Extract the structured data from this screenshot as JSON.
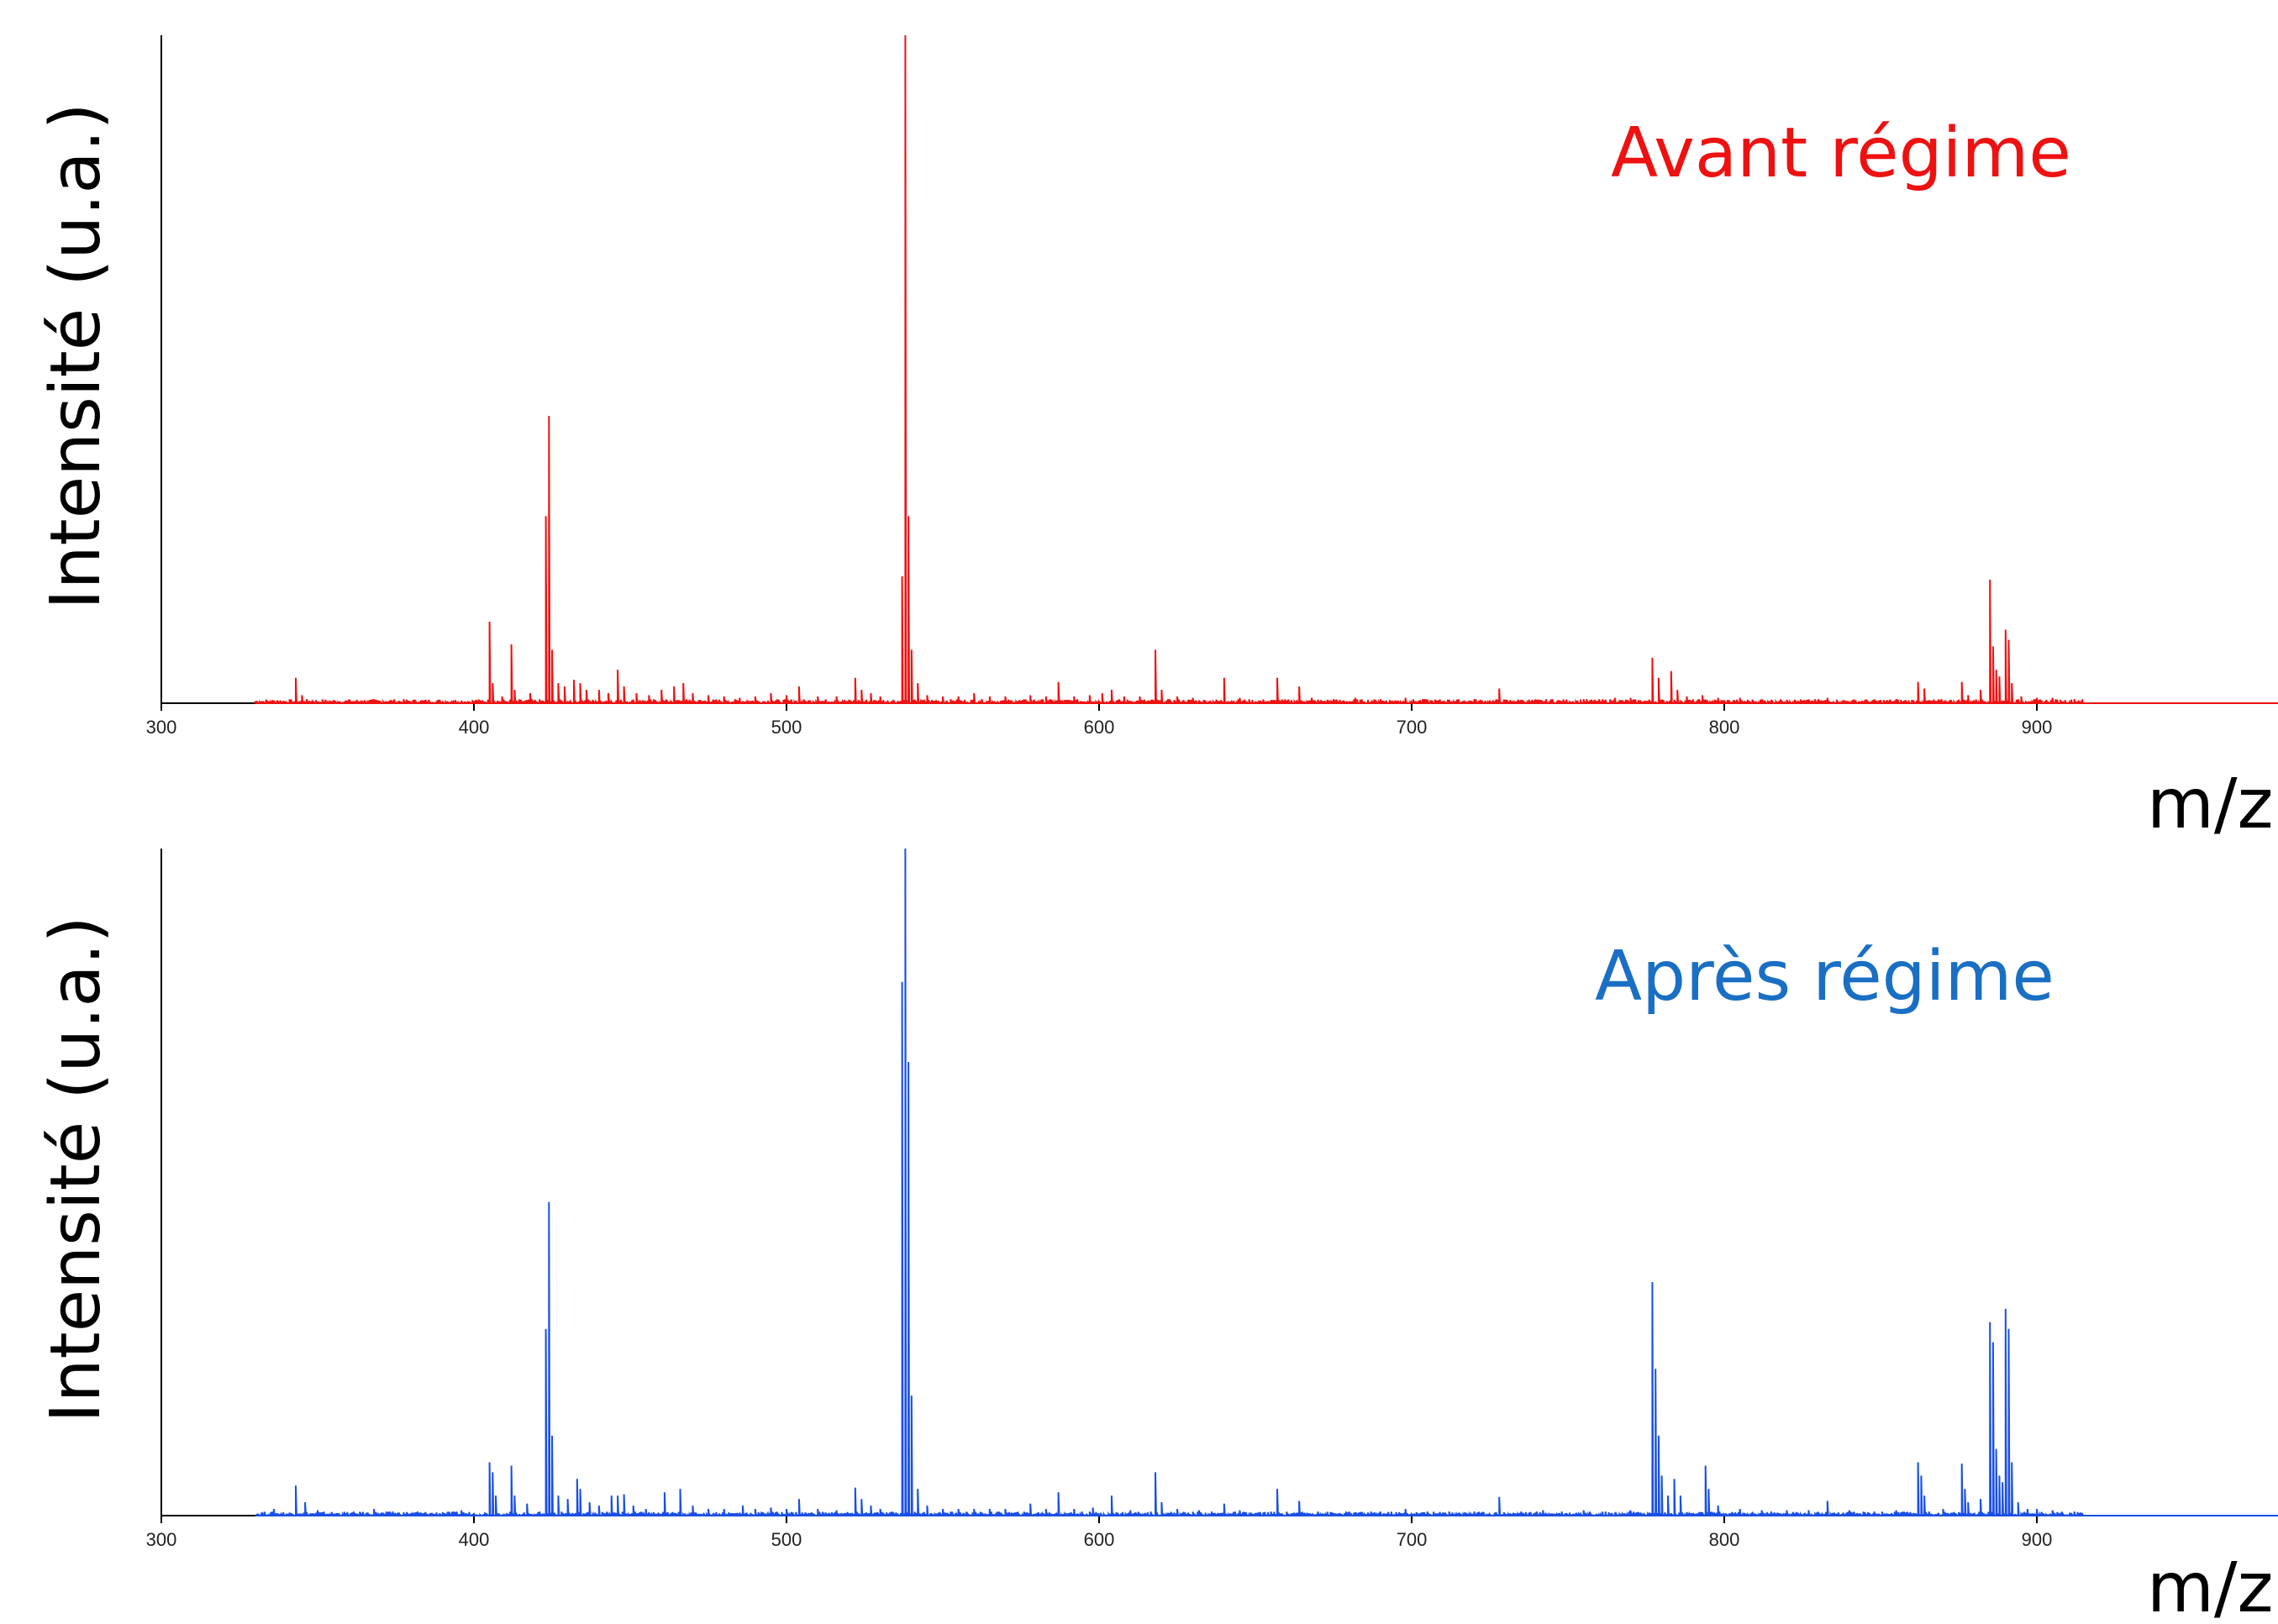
{
  "chart_data": [
    {
      "type": "line",
      "title": "Avant régime",
      "xlabel": "m/z",
      "ylabel": "Intensité (u.a.)",
      "xlim": [
        300,
        1000
      ],
      "ylim": [
        0,
        100
      ],
      "xticks": [
        "300",
        "400",
        "500",
        "600",
        "700",
        "800",
        "900"
      ],
      "grid": false,
      "color": "#ee1111",
      "title_color": "#ee1111",
      "peaks": [
        [
          337,
          0.4
        ],
        [
          343,
          3.8
        ],
        [
          345,
          1.2
        ],
        [
          368,
          0.6
        ],
        [
          378,
          0.3
        ],
        [
          405,
          12.2
        ],
        [
          406,
          3
        ],
        [
          409,
          1
        ],
        [
          412,
          8.8
        ],
        [
          413,
          2
        ],
        [
          418,
          1.5
        ],
        [
          423,
          28
        ],
        [
          424,
          43
        ],
        [
          425,
          8
        ],
        [
          427,
          3
        ],
        [
          429,
          2.5
        ],
        [
          432,
          3.5
        ],
        [
          434,
          3
        ],
        [
          436,
          2
        ],
        [
          440,
          2
        ],
        [
          443,
          1.5
        ],
        [
          446,
          5
        ],
        [
          448,
          2.5
        ],
        [
          452,
          1.5
        ],
        [
          456,
          1.2
        ],
        [
          460,
          2
        ],
        [
          464,
          2.5
        ],
        [
          467,
          3
        ],
        [
          470,
          1.5
        ],
        [
          475,
          1.2
        ],
        [
          480,
          1
        ],
        [
          485,
          0.8
        ],
        [
          490,
          1
        ],
        [
          495,
          1.5
        ],
        [
          500,
          1.2
        ],
        [
          504,
          2.5
        ],
        [
          510,
          1
        ],
        [
          516,
          1
        ],
        [
          522,
          3.8
        ],
        [
          524,
          2
        ],
        [
          527,
          1.5
        ],
        [
          530,
          1
        ],
        [
          537,
          19
        ],
        [
          538,
          100
        ],
        [
          539,
          28
        ],
        [
          540,
          8
        ],
        [
          542,
          3
        ],
        [
          545,
          1.2
        ],
        [
          550,
          1
        ],
        [
          555,
          1
        ],
        [
          560,
          1.5
        ],
        [
          565,
          1
        ],
        [
          570,
          1
        ],
        [
          578,
          1.2
        ],
        [
          583,
          1
        ],
        [
          587,
          3.2
        ],
        [
          592,
          1
        ],
        [
          597,
          1.2
        ],
        [
          601,
          1.5
        ],
        [
          604,
          2
        ],
        [
          608,
          1
        ],
        [
          613,
          1
        ],
        [
          618,
          8
        ],
        [
          620,
          2
        ],
        [
          625,
          1
        ],
        [
          630,
          0.8
        ],
        [
          640,
          3.8
        ],
        [
          645,
          0.8
        ],
        [
          657,
          3.8
        ],
        [
          664,
          2.5
        ],
        [
          668,
          0.8
        ],
        [
          675,
          0.6
        ],
        [
          682,
          0.8
        ],
        [
          690,
          0.6
        ],
        [
          698,
          0.8
        ],
        [
          704,
          0.6
        ],
        [
          712,
          0.5
        ],
        [
          720,
          0.6
        ],
        [
          728,
          2.2
        ],
        [
          735,
          0.5
        ],
        [
          745,
          0.6
        ],
        [
          755,
          0.6
        ],
        [
          765,
          0.8
        ],
        [
          770,
          0.8
        ],
        [
          777,
          6.8
        ],
        [
          779,
          3.8
        ],
        [
          783,
          4.8
        ],
        [
          785,
          2
        ],
        [
          788,
          1
        ],
        [
          793,
          1.2
        ],
        [
          798,
          0.8
        ],
        [
          805,
          0.8
        ],
        [
          812,
          0.6
        ],
        [
          820,
          0.5
        ],
        [
          833,
          0.8
        ],
        [
          845,
          0.5
        ],
        [
          855,
          0.6
        ],
        [
          862,
          3.2
        ],
        [
          864,
          2.2
        ],
        [
          876,
          3.2
        ],
        [
          878,
          1.2
        ],
        [
          882,
          2
        ],
        [
          885,
          18.5
        ],
        [
          886,
          8.5
        ],
        [
          887,
          5
        ],
        [
          888,
          4
        ],
        [
          890,
          11
        ],
        [
          891,
          9.5
        ],
        [
          892,
          3
        ],
        [
          895,
          1
        ],
        [
          900,
          0.8
        ],
        [
          905,
          0.8
        ],
        [
          912,
          0.6
        ]
      ]
    },
    {
      "type": "line",
      "title": "Après régime",
      "xlabel": "m/z",
      "ylabel": "Intensité (u.a.)",
      "xlim": [
        300,
        1000
      ],
      "ylim": [
        0,
        100
      ],
      "xticks": [
        "300",
        "400",
        "500",
        "600",
        "700",
        "800",
        "900"
      ],
      "grid": false,
      "color": "#1a4fe6",
      "title_color": "#1a6fc4",
      "peaks": [
        [
          303,
          0.3
        ],
        [
          336,
          1
        ],
        [
          343,
          4.5
        ],
        [
          346,
          2
        ],
        [
          350,
          0.8
        ],
        [
          368,
          1
        ],
        [
          374,
          0.6
        ],
        [
          382,
          0.6
        ],
        [
          390,
          0.5
        ],
        [
          396,
          0.8
        ],
        [
          405,
          8
        ],
        [
          406,
          6.5
        ],
        [
          407,
          3
        ],
        [
          412,
          7.5
        ],
        [
          413,
          3
        ],
        [
          417,
          1.8
        ],
        [
          423,
          28
        ],
        [
          424,
          47
        ],
        [
          425,
          12
        ],
        [
          427,
          3
        ],
        [
          430,
          2.5
        ],
        [
          433,
          5.5
        ],
        [
          434,
          4
        ],
        [
          437,
          2
        ],
        [
          440,
          1.5
        ],
        [
          444,
          3
        ],
        [
          446,
          3
        ],
        [
          448,
          3.2
        ],
        [
          451,
          1.5
        ],
        [
          455,
          1
        ],
        [
          461,
          3.5
        ],
        [
          466,
          4
        ],
        [
          470,
          1.5
        ],
        [
          475,
          1
        ],
        [
          480,
          1
        ],
        [
          486,
          1.5
        ],
        [
          490,
          1
        ],
        [
          495,
          1.2
        ],
        [
          500,
          1
        ],
        [
          504,
          2.5
        ],
        [
          510,
          1
        ],
        [
          516,
          0.8
        ],
        [
          522,
          4.2
        ],
        [
          524,
          2.5
        ],
        [
          527,
          1.5
        ],
        [
          530,
          1
        ],
        [
          537,
          80
        ],
        [
          538,
          100
        ],
        [
          539,
          68
        ],
        [
          540,
          18
        ],
        [
          542,
          4
        ],
        [
          545,
          1.5
        ],
        [
          550,
          1
        ],
        [
          555,
          1
        ],
        [
          560,
          1
        ],
        [
          565,
          1
        ],
        [
          570,
          1
        ],
        [
          578,
          1.8
        ],
        [
          583,
          1
        ],
        [
          587,
          3.5
        ],
        [
          592,
          1
        ],
        [
          598,
          1.2
        ],
        [
          604,
          3
        ],
        [
          610,
          0.8
        ],
        [
          618,
          6.5
        ],
        [
          620,
          2
        ],
        [
          625,
          1
        ],
        [
          632,
          0.8
        ],
        [
          640,
          1.8
        ],
        [
          645,
          0.8
        ],
        [
          657,
          4
        ],
        [
          664,
          2.2
        ],
        [
          670,
          0.6
        ],
        [
          680,
          0.6
        ],
        [
          690,
          0.6
        ],
        [
          698,
          1
        ],
        [
          705,
          0.6
        ],
        [
          712,
          0.6
        ],
        [
          720,
          0.6
        ],
        [
          728,
          2.8
        ],
        [
          735,
          0.6
        ],
        [
          742,
          0.8
        ],
        [
          748,
          0.6
        ],
        [
          755,
          0.8
        ],
        [
          762,
          0.6
        ],
        [
          770,
          0.8
        ],
        [
          777,
          35
        ],
        [
          778,
          22
        ],
        [
          779,
          12
        ],
        [
          780,
          6
        ],
        [
          782,
          3
        ],
        [
          784,
          5.5
        ],
        [
          786,
          3
        ],
        [
          794,
          7.5
        ],
        [
          795,
          4
        ],
        [
          798,
          1.5
        ],
        [
          805,
          1
        ],
        [
          812,
          0.8
        ],
        [
          820,
          0.8
        ],
        [
          827,
          0.8
        ],
        [
          833,
          2.2
        ],
        [
          840,
          0.8
        ],
        [
          848,
          0.6
        ],
        [
          855,
          0.8
        ],
        [
          862,
          8
        ],
        [
          863,
          6
        ],
        [
          864,
          3
        ],
        [
          870,
          1
        ],
        [
          876,
          7.8
        ],
        [
          877,
          4
        ],
        [
          878,
          2
        ],
        [
          882,
          2.5
        ],
        [
          885,
          29
        ],
        [
          886,
          26
        ],
        [
          887,
          10
        ],
        [
          888,
          6
        ],
        [
          889,
          5
        ],
        [
          890,
          31
        ],
        [
          891,
          28
        ],
        [
          892,
          8
        ],
        [
          894,
          2
        ],
        [
          897,
          1
        ],
        [
          900,
          1
        ],
        [
          905,
          0.8
        ],
        [
          912,
          0.6
        ]
      ]
    }
  ]
}
